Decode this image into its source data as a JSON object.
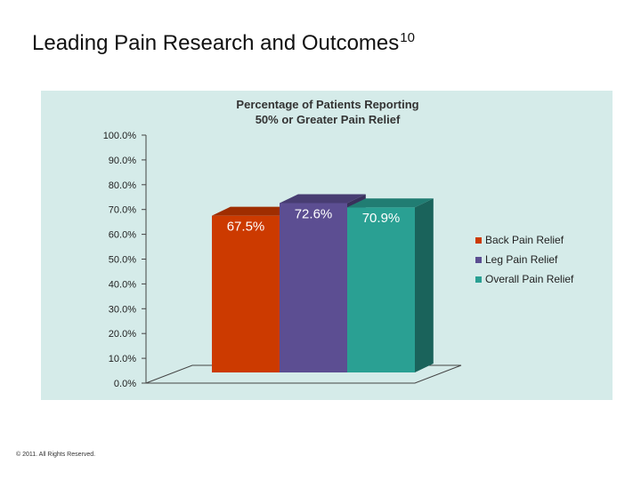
{
  "slide": {
    "title": "Leading Pain Research and Outcomes",
    "title_superscript": "10",
    "footer": "© 2011. All Rights Reserved."
  },
  "colors": {
    "panel_background": "#d5ebe9",
    "axis": "#444444"
  },
  "chart_data": {
    "type": "bar",
    "style": "3d",
    "title_lines": [
      "Percentage of Patients Reporting",
      "50% or Greater Pain Relief"
    ],
    "ylim": [
      0,
      100
    ],
    "yticks": [
      "100.0%",
      "90.0%",
      "80.0%",
      "70.0%",
      "60.0%",
      "50.0%",
      "40.0%",
      "30.0%",
      "20.0%",
      "10.0%",
      "0.0%"
    ],
    "grid": false,
    "legend_position": "right",
    "series": [
      {
        "name": "Back Pain Relief",
        "value": 67.5,
        "label": "67.5%",
        "color": "#cc3a00"
      },
      {
        "name": "Leg Pain Relief",
        "value": 72.6,
        "label": "72.6%",
        "color": "#5c4e92"
      },
      {
        "name": "Overall Pain Relief",
        "value": 70.9,
        "label": "70.9%",
        "color": "#2aa093"
      }
    ]
  }
}
